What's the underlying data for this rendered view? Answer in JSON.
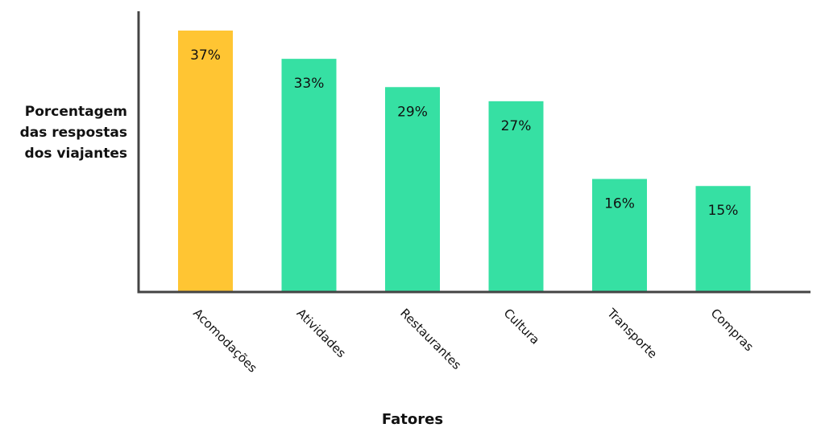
{
  "chart_data": {
    "type": "bar",
    "categories": [
      "Acomodações",
      "Atividades",
      "Restaurantes",
      "Cultura",
      "Transporte",
      "Compras"
    ],
    "values": [
      37,
      33,
      29,
      27,
      16,
      15
    ],
    "value_labels": [
      "37%",
      "33%",
      "29%",
      "27%",
      "16%",
      "15%"
    ],
    "xlabel": "Fatores",
    "ylabel": "Porcentagem\ndas respostas\ndos viajantes",
    "ylim": [
      0,
      40
    ],
    "colors": [
      "#FFC533",
      "#36E0A3",
      "#36E0A3",
      "#36E0A3",
      "#36E0A3",
      "#36E0A3"
    ],
    "axis_color": "#444444",
    "grid": false,
    "legend": "none"
  }
}
